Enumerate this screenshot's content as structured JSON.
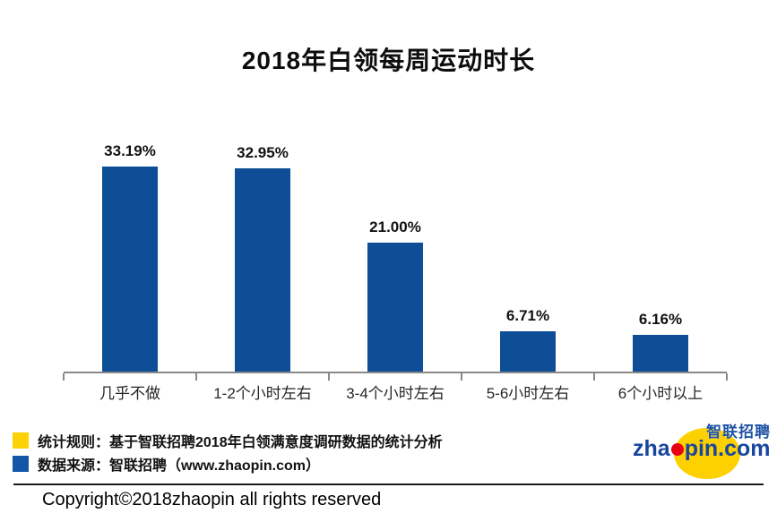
{
  "title": "2018年白领每周运动时长",
  "chart_data": {
    "type": "bar",
    "title": "2018年白领每周运动时长",
    "categories": [
      "几乎不做",
      "1-2个小时左右",
      "3-4个小时左右",
      "5-6小时左右",
      "6个小时以上"
    ],
    "values": [
      33.19,
      32.95,
      21.0,
      6.71,
      6.16
    ],
    "value_labels": [
      "33.19%",
      "32.95%",
      "21.00%",
      "6.71%",
      "6.16%"
    ],
    "xlabel": "",
    "ylabel": "",
    "ylim": [
      0,
      35
    ],
    "grid": false,
    "legend_position": "none",
    "bar_color": "#0d4e96",
    "axis_color": "#898989"
  },
  "legend": {
    "items": [
      {
        "swatch_color": "#fcd205",
        "label": "统计规则：基于智联招聘2018年白领满意度调研数据的统计分析"
      },
      {
        "swatch_color": "#1355a6",
        "label": "数据来源：智联招聘（www.zhaopin.com）"
      }
    ]
  },
  "footer": {
    "copyright": "Copyright©2018zhaopin all rights reserved"
  },
  "logo": {
    "brand_cn": "智联招聘",
    "domain_prefix": "zha",
    "domain_suffix": "pin.com",
    "ellipse_color": "#fdd000",
    "dot_color": "#e60012",
    "text_color": "#17469e"
  }
}
